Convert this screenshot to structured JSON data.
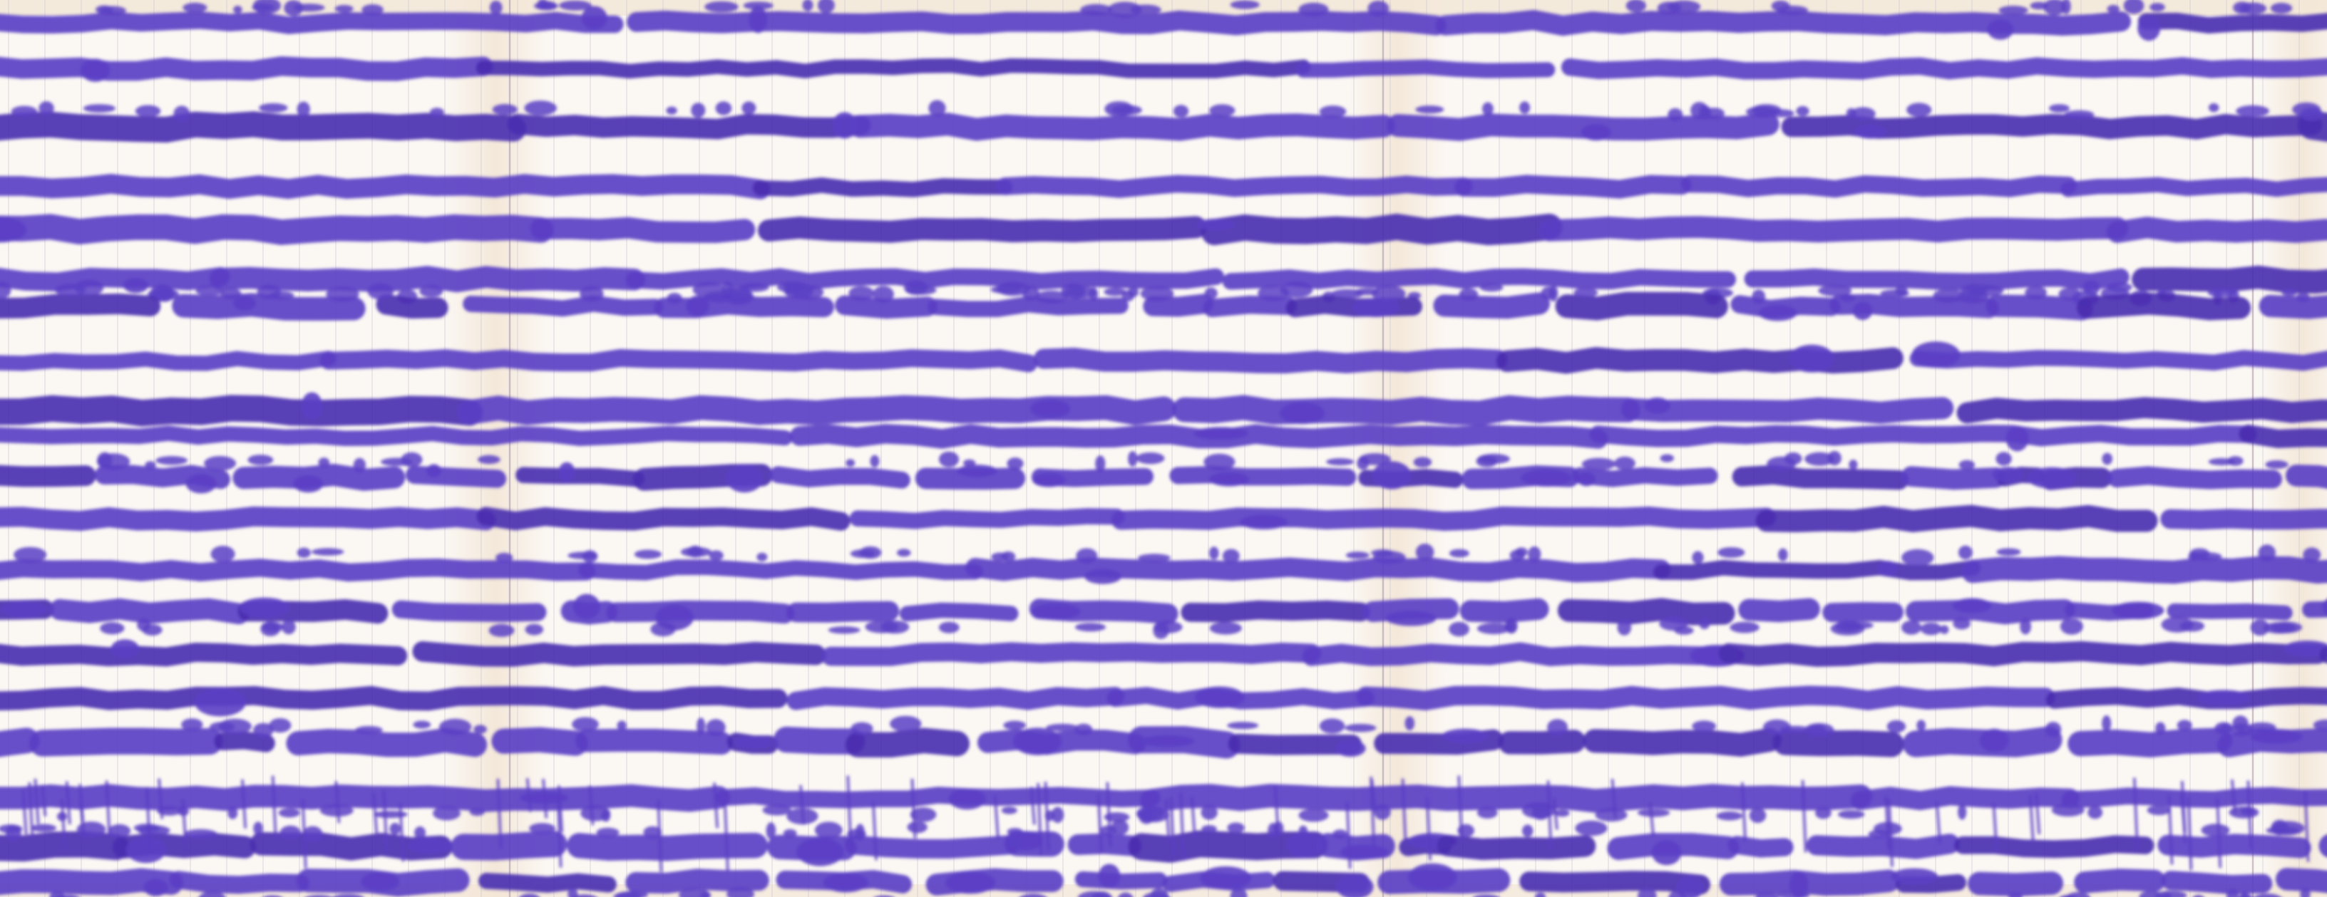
{
  "image": {
    "kind": "multichannel pen-recorder strip chart (paper trace scan)",
    "printed_text": []
  },
  "colors": {
    "paper": "#fbf8f4",
    "paper_tint": "#f3e6d6",
    "grid": "#c9c6d3",
    "fold_line": "#b9a9b8",
    "ink": "#5a3fc4",
    "ink_dark": "#4a2fb0"
  },
  "traces": {
    "count": 22,
    "style": "thick horizontal ink bands with occasional gaps, blotches and short dashes"
  }
}
